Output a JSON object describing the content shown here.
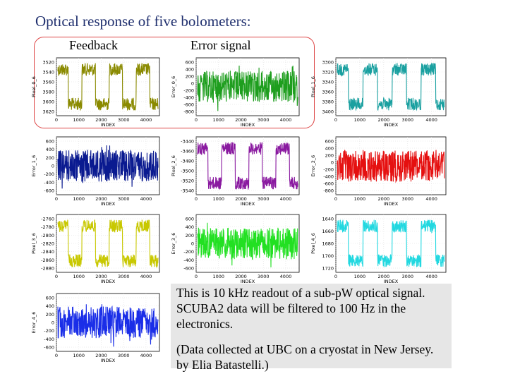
{
  "title": "Optical response of five bolometers:",
  "label_feedback": "Feedback",
  "label_error": "Error signal",
  "note_line1": "This is 10 kHz readout of a sub-pW optical signal. SCUBA2 data will be filtered to 100 Hz in the electronics.",
  "note_line2": "(Data collected at UBC on a cryostat in New Jersey. by Elia Batastelli.)",
  "chart_data": [
    {
      "type": "line",
      "ylabel": "Pixel_0_6",
      "xlabel": "INDEX",
      "color": "#8a8a00",
      "signal": "square",
      "yticks": [
        3520,
        3540,
        3560,
        3580,
        3600,
        3620
      ],
      "xticks": [
        0,
        1000,
        2000,
        3000,
        4000
      ],
      "xlim": [
        0,
        4600
      ]
    },
    {
      "type": "line",
      "ylabel": "Error_0_6",
      "xlabel": "INDEX",
      "color": "#1e9e1e",
      "signal": "noise",
      "yticks": [
        600,
        400,
        200,
        0,
        -200,
        -400,
        -600,
        -800
      ],
      "xticks": [
        0,
        1000,
        2000,
        3000,
        4000
      ],
      "xlim": [
        0,
        4600
      ]
    },
    {
      "type": "line",
      "ylabel": "Pixel_1_6",
      "xlabel": "INDEX",
      "color": "#1aa0a0",
      "signal": "square",
      "yticks": [
        3300,
        3320,
        3340,
        3360,
        3380,
        3400
      ],
      "xticks": [
        0,
        1000,
        2000,
        3000,
        4000
      ],
      "xlim": [
        0,
        4600
      ]
    },
    {
      "type": "line",
      "ylabel": "Error_1_6",
      "xlabel": "INDEX",
      "color": "#0a1a90",
      "signal": "noise",
      "yticks": [
        600,
        400,
        200,
        0,
        -200,
        -400,
        -600
      ],
      "xticks": [
        0,
        1000,
        2000,
        3000,
        4000
      ],
      "xlim": [
        0,
        4600
      ]
    },
    {
      "type": "line",
      "ylabel": "Pixel_2_6",
      "xlabel": "INDEX",
      "color": "#8a1aa0",
      "signal": "square",
      "yticks": [
        -3440,
        -3460,
        -3480,
        -3500,
        -3520,
        -3540
      ],
      "xticks": [
        0,
        1000,
        2000,
        3000,
        4000
      ],
      "xlim": [
        0,
        4600
      ]
    },
    {
      "type": "line",
      "ylabel": "Error_2_6",
      "xlabel": "INDEX",
      "color": "#e51010",
      "signal": "noise",
      "yticks": [
        600,
        400,
        200,
        0,
        -200,
        -400,
        -600,
        -800
      ],
      "xticks": [
        0,
        1000,
        2000,
        3000,
        4000
      ],
      "xlim": [
        0,
        4600
      ]
    },
    {
      "type": "line",
      "ylabel": "Pixel_3_6",
      "xlabel": "INDEX",
      "color": "#c8c800",
      "signal": "square",
      "yticks": [
        -2760,
        -2780,
        -2800,
        -2820,
        -2840,
        -2860,
        -2880
      ],
      "xticks": [
        0,
        1000,
        2000,
        3000,
        4000
      ],
      "xlim": [
        0,
        4600
      ]
    },
    {
      "type": "line",
      "ylabel": "Error_3_6",
      "xlabel": "INDEX",
      "color": "#22e022",
      "signal": "noise",
      "yticks": [
        600,
        400,
        200,
        0,
        -200,
        -400,
        -600
      ],
      "xticks": [
        0,
        1000,
        2000,
        3000,
        4000
      ],
      "xlim": [
        0,
        4600
      ]
    },
    {
      "type": "line",
      "ylabel": "Pixel_4_6",
      "xlabel": "INDEX",
      "color": "#22d8e0",
      "signal": "square",
      "yticks": [
        1640,
        1660,
        1680,
        1700,
        1720
      ],
      "xticks": [
        0,
        1000,
        2000,
        3000,
        4000
      ],
      "xlim": [
        0,
        4600
      ]
    },
    {
      "type": "line",
      "ylabel": "Error_4_6",
      "xlabel": "INDEX",
      "color": "#1a2ee8",
      "signal": "noise",
      "yticks": [
        600,
        400,
        200,
        0,
        -200,
        -400,
        -600
      ],
      "xticks": [
        0,
        1000,
        2000,
        3000,
        4000
      ],
      "xlim": [
        0,
        4600
      ]
    }
  ]
}
